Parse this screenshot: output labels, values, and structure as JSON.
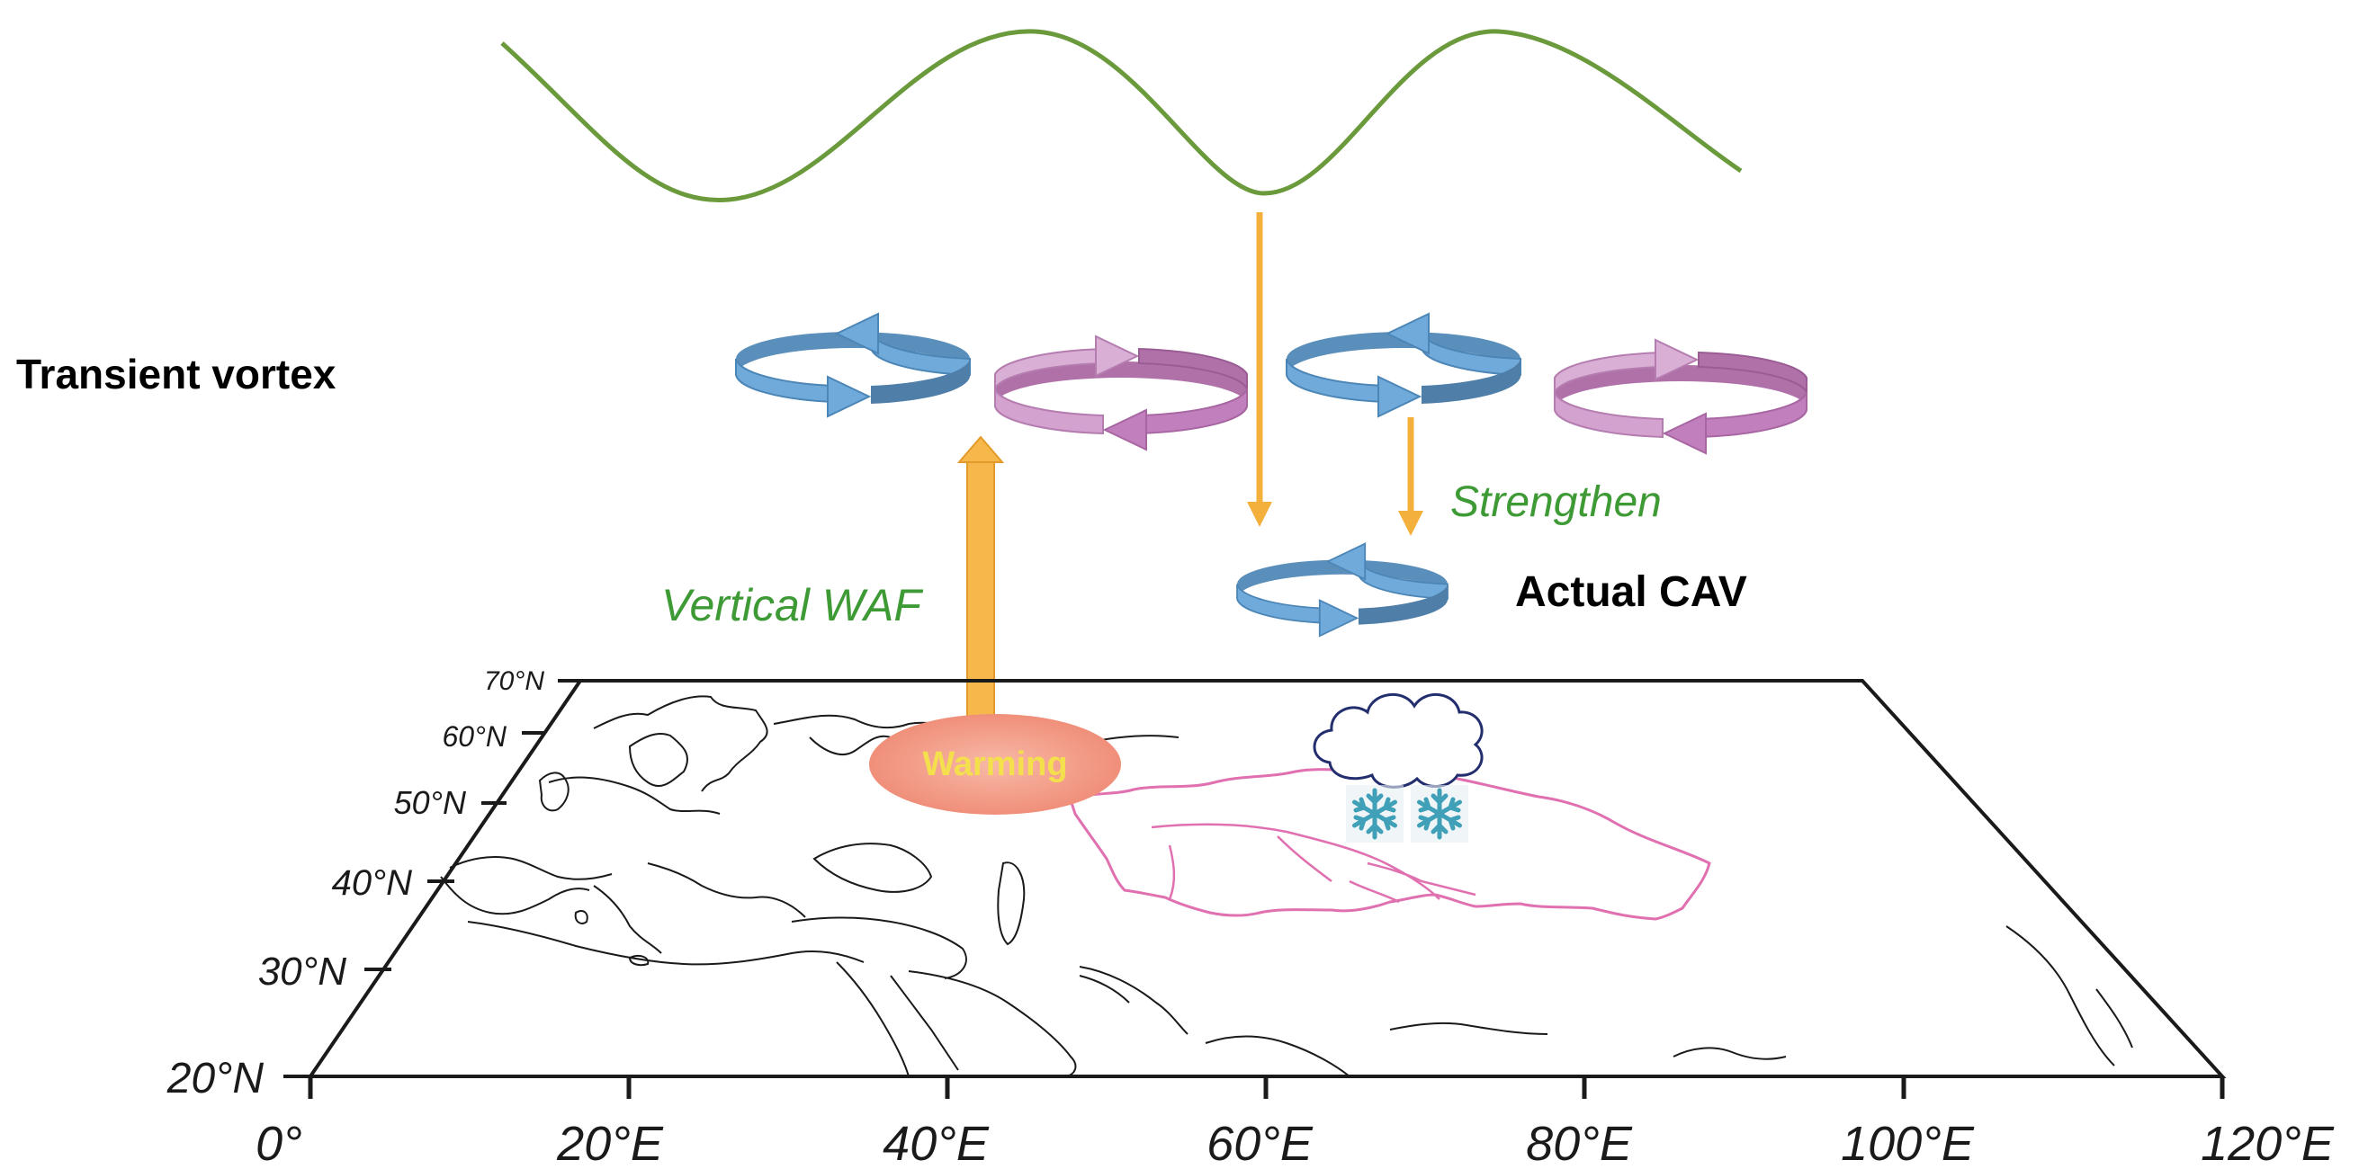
{
  "labels": {
    "transient_vortex": "Transient vortex",
    "vertical_waf": "Vertical WAF",
    "strengthen": "Strengthen",
    "actual_cav": "Actual CAV",
    "warming": "Warming"
  },
  "map": {
    "lat_labels": [
      "20°N",
      "30°N",
      "40°N",
      "50°N",
      "60°N",
      "70°N"
    ],
    "lon_labels": [
      "0°",
      "20°E",
      "40°E",
      "60°E",
      "80°E",
      "100°E",
      "120°E"
    ]
  },
  "icons": [
    "cyclonic-vortex-icon",
    "anticyclonic-vortex-icon",
    "cloud-icon",
    "snowflake-icon"
  ],
  "colors": {
    "wave": "#6a9a3c",
    "cyclone": "#6fa8d6",
    "cyclone_dark": "#5a88b0",
    "anticyclone": "#c88ec2",
    "anticyclone_dark": "#a660a0",
    "arrow": "#f4b03c",
    "warming": "#f4a08c",
    "region_outline": "#e070b0",
    "label_green": "#3e9a35"
  }
}
